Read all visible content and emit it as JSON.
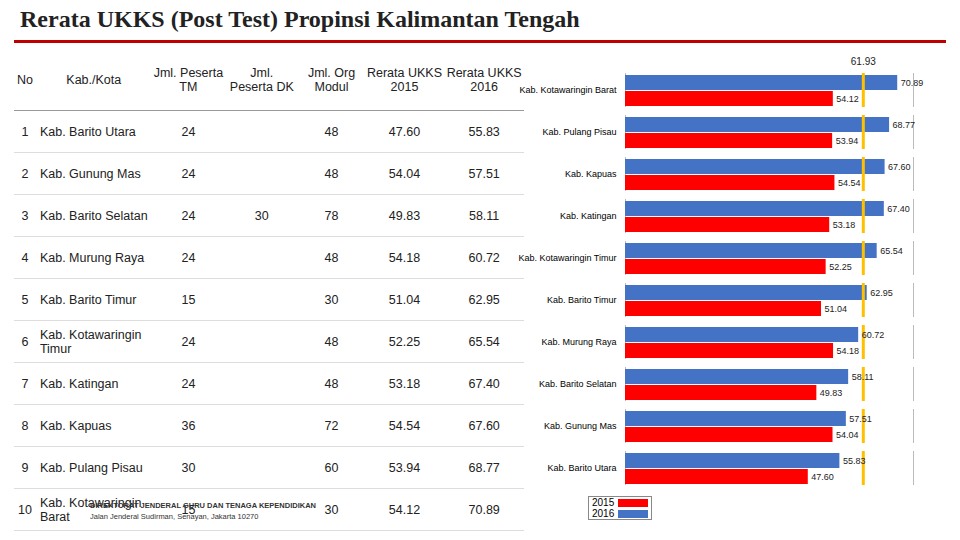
{
  "title": "Rerata UKKS (Post Test) Propinsi Kalimantan Tengah",
  "table": {
    "columns": [
      "No",
      "Kab./Kota",
      "Jml. Peserta TM",
      "Jml. Peserta DK",
      "Jml. Org Modul",
      "Rerata UKKS 2015",
      "Rerata UKKS 2016"
    ],
    "rows": [
      [
        "1",
        "Kab. Barito Utara",
        "24",
        null,
        "48",
        "47.60",
        "55.83"
      ],
      [
        "2",
        "Kab. Gunung Mas",
        "24",
        null,
        "48",
        "54.04",
        "57.51"
      ],
      [
        "3",
        "Kab. Barito Selatan",
        "24",
        "30",
        "78",
        "49.83",
        "58.11"
      ],
      [
        "4",
        "Kab. Murung Raya",
        "24",
        null,
        "48",
        "54.18",
        "60.72"
      ],
      [
        "5",
        "Kab. Barito Timur",
        "15",
        null,
        "30",
        "51.04",
        "62.95"
      ],
      [
        "6",
        "Kab. Kotawaringin Timur",
        "24",
        null,
        "48",
        "52.25",
        "65.54"
      ],
      [
        "7",
        "Kab. Katingan",
        "24",
        null,
        "48",
        "53.18",
        "67.40"
      ],
      [
        "8",
        "Kab. Kapuas",
        "36",
        null,
        "72",
        "54.54",
        "67.60"
      ],
      [
        "9",
        "Kab. Pulang Pisau",
        "30",
        null,
        "60",
        "53.94",
        "68.77"
      ],
      [
        "10",
        "Kab. Kotawaringin Barat",
        "15",
        null,
        "30",
        "54.12",
        "70.89"
      ]
    ]
  },
  "chart_data": {
    "type": "bar",
    "orientation": "horizontal",
    "categories": [
      "Kab. Kotawaringin Barat",
      "Kab. Pulang Pisau",
      "Kab. Kapuas",
      "Kab. Katingan",
      "Kab. Kotawaringin Timur",
      "Kab. Barito Timur",
      "Kab. Murung Raya",
      "Kab. Barito Selatan",
      "Kab. Gunung Mas",
      "Kab. Barito Utara"
    ],
    "series": [
      {
        "name": "2016",
        "color": "#4472c4",
        "values": [
          70.89,
          68.77,
          67.6,
          67.4,
          65.54,
          62.95,
          60.72,
          58.11,
          57.51,
          55.83
        ],
        "value_labels": [
          "70.89",
          "68.77",
          "67.60",
          "67.40",
          "65.54",
          "62.95",
          "60.72",
          "58.11",
          "57.51",
          "55.83"
        ]
      },
      {
        "name": "2015",
        "color": "#ff0000",
        "values": [
          54.12,
          53.94,
          54.54,
          53.18,
          52.25,
          51.04,
          54.18,
          49.83,
          54.04,
          47.6
        ],
        "value_labels": [
          "54.12",
          "53.94",
          "54.54",
          "53.18",
          "52.25",
          "51.04",
          "54.18",
          "49.83",
          "54.04",
          "47.60"
        ]
      }
    ],
    "xlim": [
      0,
      75
    ],
    "tick_labels": false,
    "data_labels": true,
    "reference_line": {
      "value": 61.93,
      "label": "61.93",
      "color": "#ffc000"
    }
  },
  "footer": [
    "DIREKTORAT JENDERAL GURU DAN TENAGA KEPENDIDIKAN",
    "Jalan Jenderal Sudirman, Senayan, Jakarta 10270"
  ]
}
